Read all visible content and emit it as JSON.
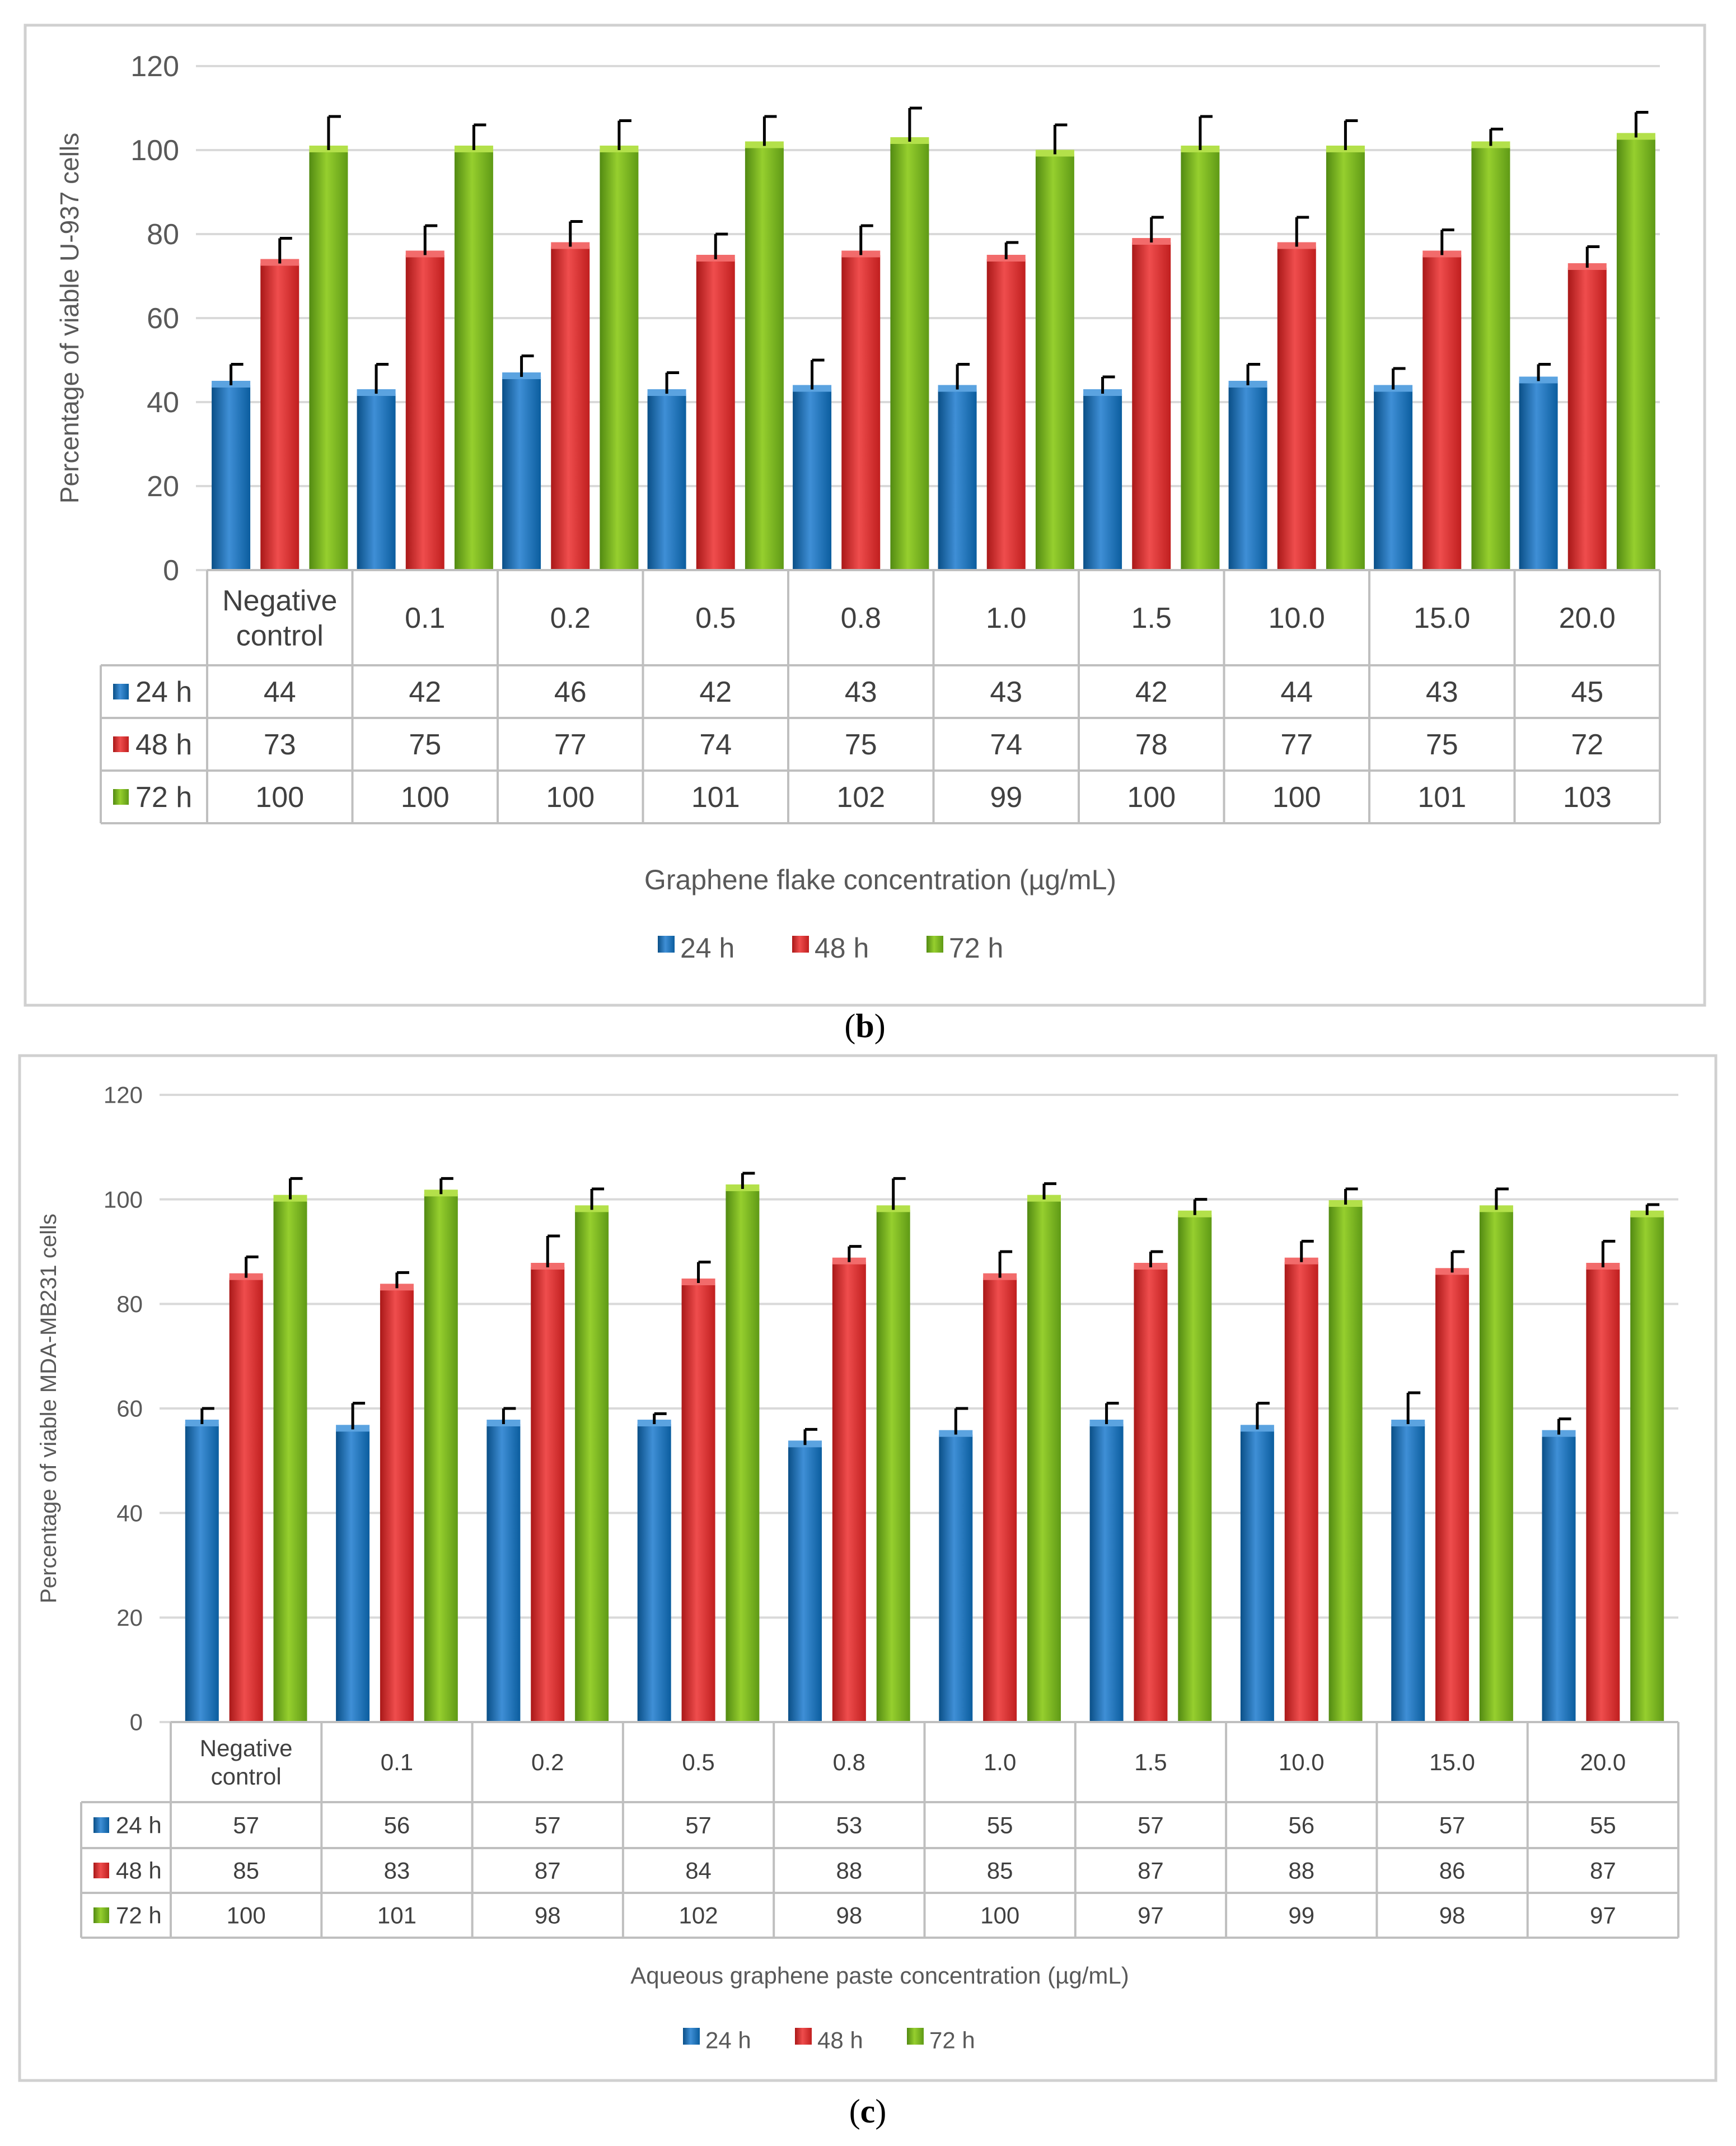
{
  "colors": {
    "s24": {
      "top": "#5ba3e0",
      "bot": "#0b5d9e"
    },
    "s48": {
      "top": "#f26b6b",
      "bot": "#c01f1f"
    },
    "s72": {
      "top": "#b3e04a",
      "bot": "#5f9a16"
    }
  },
  "chart_data": [
    {
      "type": "bar",
      "panel_label": "b",
      "ylabel": "Percentage of viable U-937 cells",
      "xlabel": "Graphene flake concentration (µg/mL)",
      "ylim": [
        0,
        120
      ],
      "yticks": [
        "0",
        "20",
        "40",
        "60",
        "80",
        "100",
        "120"
      ],
      "categories": [
        "Negative control",
        "0.1",
        "0.2",
        "0.5",
        "0.8",
        "1.0",
        "1.5",
        "10.0",
        "15.0",
        "20.0"
      ],
      "series": [
        {
          "name": "24 h",
          "values": [
            44,
            42,
            46,
            42,
            43,
            43,
            42,
            44,
            43,
            45
          ],
          "errors": [
            5,
            7,
            5,
            5,
            7,
            6,
            4,
            5,
            5,
            4
          ]
        },
        {
          "name": "48 h",
          "values": [
            73,
            75,
            77,
            74,
            75,
            74,
            78,
            77,
            75,
            72
          ],
          "errors": [
            6,
            7,
            6,
            6,
            7,
            4,
            6,
            7,
            6,
            5
          ]
        },
        {
          "name": "72 h",
          "values": [
            100,
            100,
            100,
            101,
            102,
            99,
            100,
            100,
            101,
            103
          ],
          "errors": [
            8,
            6,
            7,
            7,
            8,
            7,
            8,
            7,
            4,
            6
          ]
        }
      ],
      "legend": [
        "24 h",
        "48 h",
        "72 h"
      ],
      "legend_position": "bottom-center"
    },
    {
      "type": "bar",
      "panel_label": "c",
      "ylabel": "Percentage of viable MDA-MB231 cells",
      "xlabel": "Aqueous graphene paste concentration (µg/mL)",
      "ylim": [
        0,
        120
      ],
      "yticks": [
        "0",
        "20",
        "40",
        "60",
        "80",
        "100",
        "120"
      ],
      "categories": [
        "Negative control",
        "0.1",
        "0.2",
        "0.5",
        "0.8",
        "1.0",
        "1.5",
        "10.0",
        "15.0",
        "20.0"
      ],
      "series": [
        {
          "name": "24 h",
          "values": [
            57,
            56,
            57,
            57,
            53,
            55,
            57,
            56,
            57,
            55
          ],
          "errors": [
            3,
            5,
            3,
            2,
            3,
            5,
            4,
            5,
            6,
            3
          ]
        },
        {
          "name": "48 h",
          "values": [
            85,
            83,
            87,
            84,
            88,
            85,
            87,
            88,
            86,
            87
          ],
          "errors": [
            4,
            3,
            6,
            4,
            3,
            5,
            3,
            4,
            4,
            5
          ]
        },
        {
          "name": "72 h",
          "values": [
            100,
            101,
            98,
            102,
            98,
            100,
            97,
            99,
            98,
            97
          ],
          "errors": [
            4,
            3,
            4,
            3,
            6,
            3,
            3,
            3,
            4,
            2
          ]
        }
      ],
      "legend": [
        "24 h",
        "48 h",
        "72 h"
      ],
      "legend_position": "bottom-center"
    }
  ]
}
